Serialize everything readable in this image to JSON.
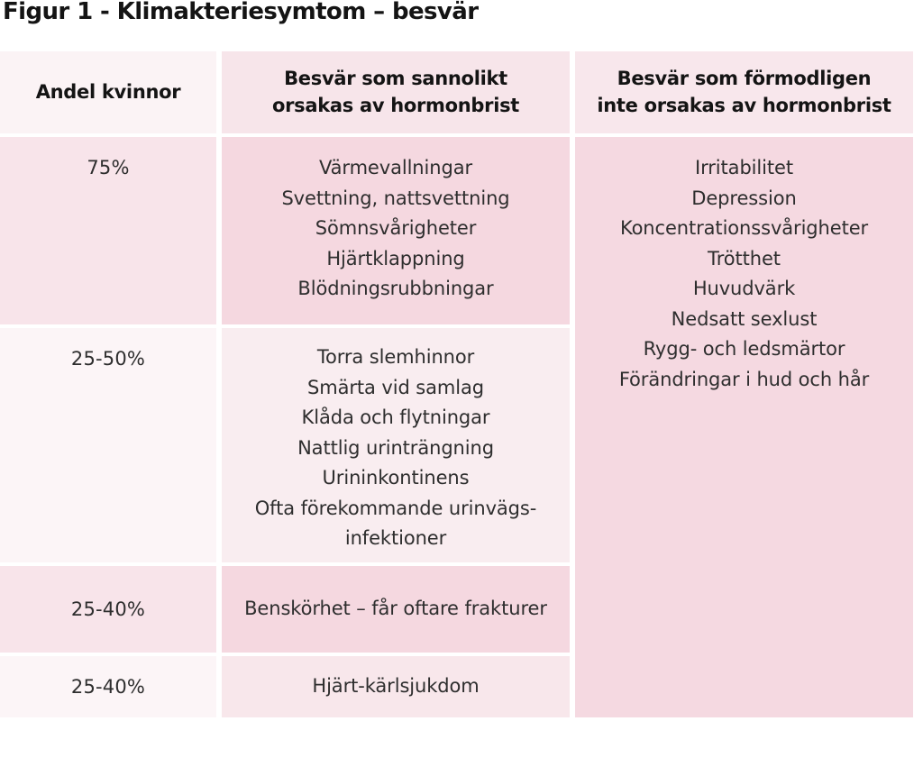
{
  "title": "Figur 1 - Klimakteriesymtom – besvär",
  "chart_data": {
    "type": "table",
    "title": "Figur 1 - Klimakteriesymtom – besvär",
    "columns": [
      {
        "header": "Andel kvinnor",
        "header_lines": [
          "Andel kvinnor"
        ]
      },
      {
        "header": "Besvär som sannolikt orsakas av hormonbrist",
        "header_lines": [
          "Besvär som sannolikt",
          "orsakas av hormonbrist"
        ]
      },
      {
        "header": "Besvär som förmodligen inte orsakas av hormonbrist",
        "header_lines": [
          "Besvär som förmodligen",
          "inte orsakas av hormonbrist"
        ]
      }
    ],
    "rows": [
      {
        "share": "75%",
        "symptoms": [
          "Värmevallningar",
          "Svettning, nattsvettning",
          "Sömnsvårigheter",
          "Hjärtklappning",
          "Blödningsrubbningar"
        ]
      },
      {
        "share": "25-50%",
        "symptoms": [
          "Torra slemhinnor",
          "Smärta vid samlag",
          "Klåda och flytningar",
          "Nattlig urinträngning",
          "Urininkontinens",
          "Ofta förekommande urinvägs-infektioner"
        ]
      },
      {
        "share": "25-40%",
        "symptoms": [
          "Benskörhet – får oftare frakturer"
        ]
      },
      {
        "share": "25-40%",
        "symptoms": [
          "Hjärt-kärlsjukdom"
        ]
      }
    ],
    "non_hormonal_symptoms": [
      "Irritabilitet",
      "Depression",
      "Koncentrationssvårigheter",
      "Trötthet",
      "Huvudvärk",
      "Nedsatt sexlust",
      "Rygg- och ledsmärtor",
      "Förändringar i hud och hår"
    ],
    "layout_hint": "3-column table; last column is one merged cell spanning all body rows"
  },
  "colors": {
    "page_bg": "#ffffff",
    "header_col1_bg": "#fbf3f5",
    "header_col2_bg": "#f7e5ea",
    "header_col3_bg": "#f8e7ec",
    "share_pink_bg": "#f8e4ea",
    "share_light_bg": "#fcf5f7",
    "symptom_strong_pink_bg": "#f5d8e0",
    "symptom_light_pink_bg": "#f9edf0",
    "symptom_row4_bg": "#f8e7eb",
    "merged_col3_bg": "#f5d9e1",
    "title_text": "#141414",
    "body_text": "#2e2e2e"
  }
}
